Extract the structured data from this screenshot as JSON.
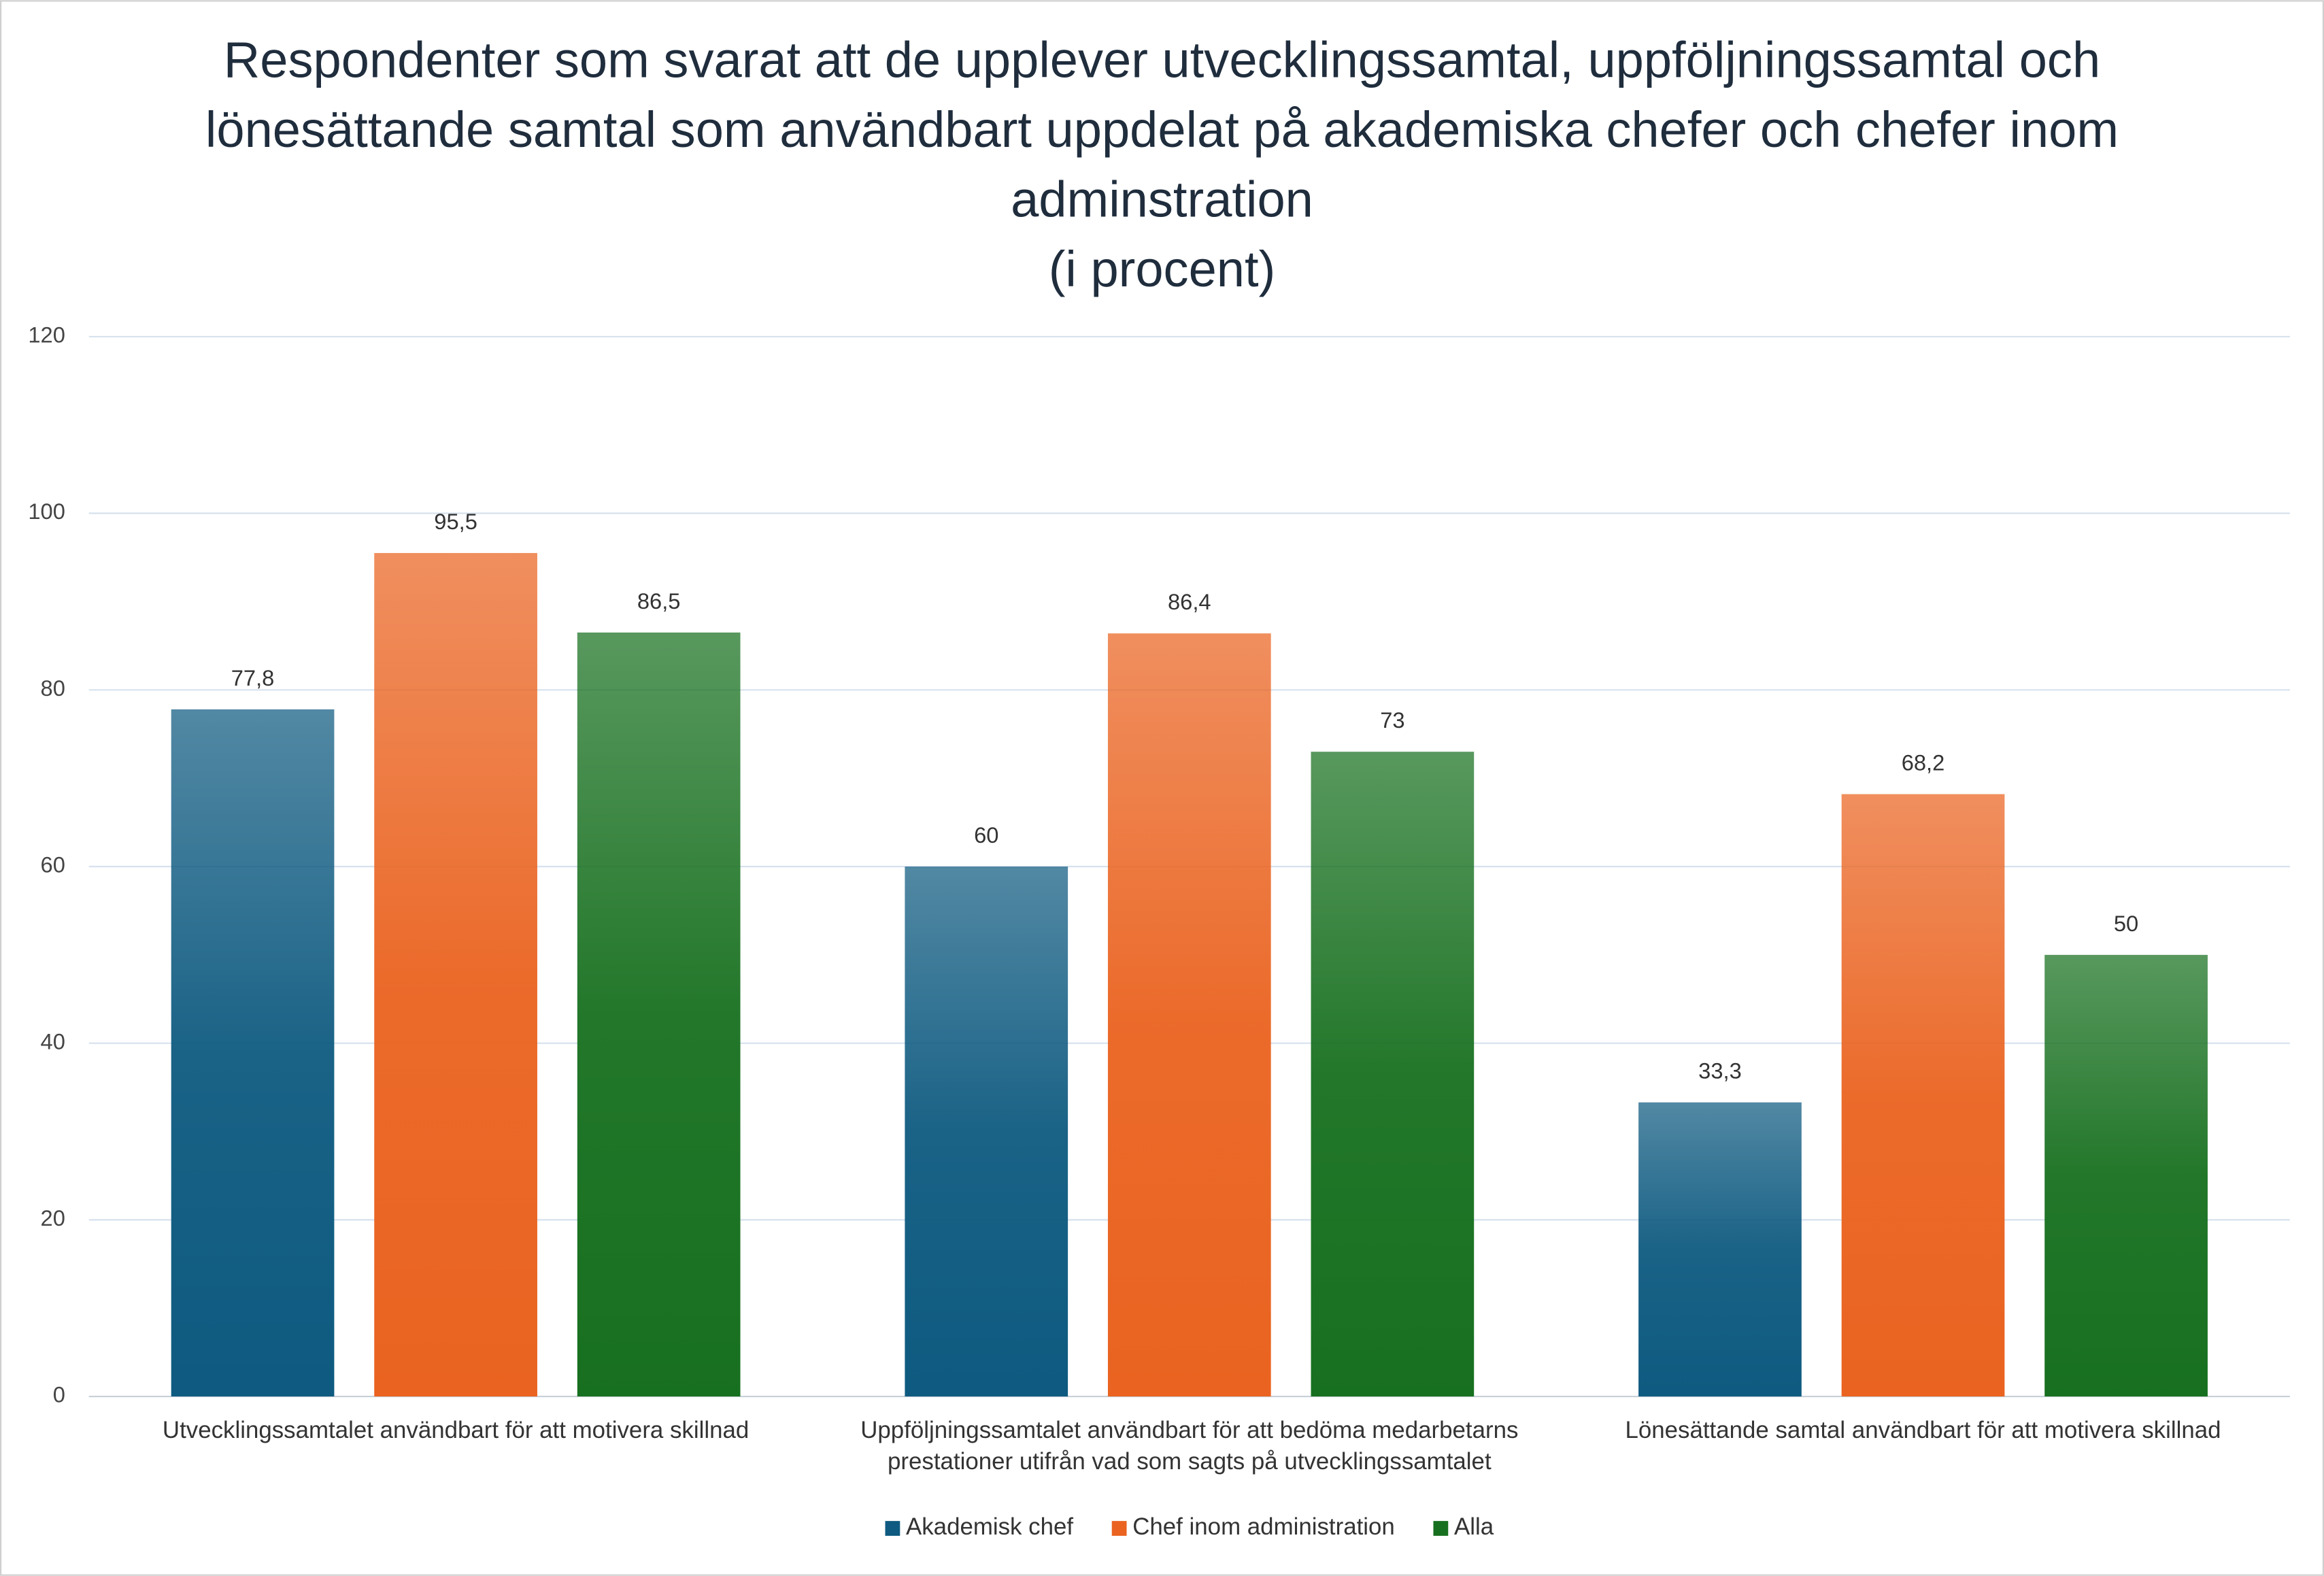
{
  "chart_data": {
    "type": "bar",
    "title": "Respondenter som svarat att de upplever utvecklingssamtal, uppföljningssamtal och lönesättande samtal som användbart uppdelat på akademiska chefer och chefer inom adminstration",
    "subtitle": "(i procent)",
    "categories": [
      "Utvecklingssamtalet användbart för att motivera skillnad",
      "Uppföljningssamtalet användbart för att bedöma medarbetarns prestationer utifrån vad som sagts på utvecklingssamtalet",
      "Lönesättande samtal användbart för att motivera skillnad"
    ],
    "series": [
      {
        "name": "Akademisk chef",
        "color": "#0e5a80",
        "values": [
          77.8,
          60,
          33.3
        ],
        "value_labels": [
          "77,8",
          "60",
          "33,3"
        ]
      },
      {
        "name": "Chef inom administration",
        "color": "#ea6320",
        "values": [
          95.5,
          86.4,
          68.2
        ],
        "value_labels": [
          "95,5",
          "86,4",
          "68,2"
        ]
      },
      {
        "name": "Alla",
        "color": "#17701f",
        "values": [
          86.5,
          73,
          50
        ],
        "value_labels": [
          "86,5",
          "73",
          "50"
        ]
      }
    ],
    "ylim": [
      0,
      120
    ],
    "yticks": [
      0,
      20,
      40,
      60,
      80,
      100,
      120
    ],
    "grid": true,
    "legend": "bottom"
  }
}
